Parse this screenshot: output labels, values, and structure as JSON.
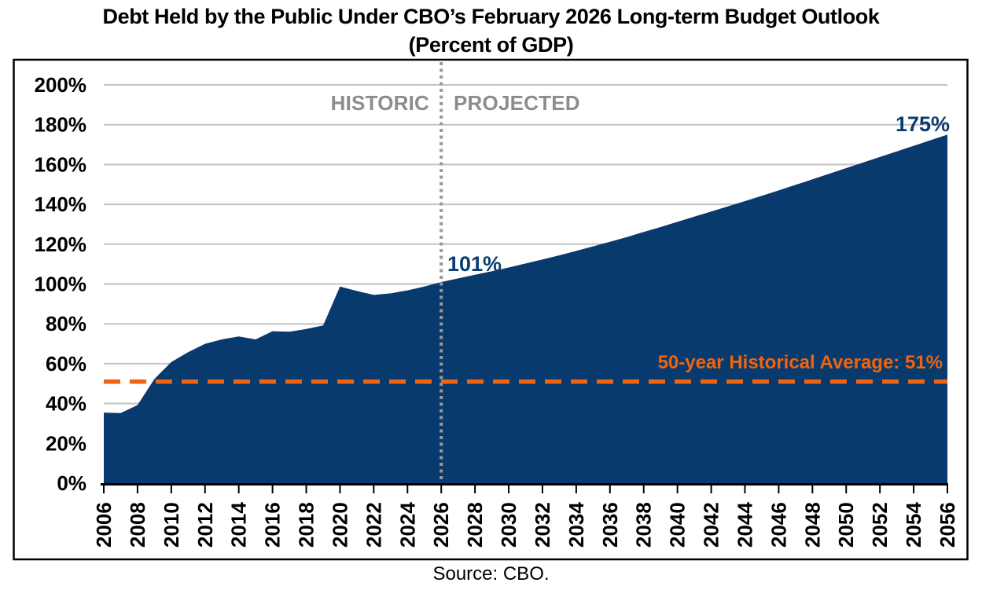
{
  "title": {
    "line1": "Debt Held by the Public Under CBO’s February 2026 Long-term Budget Outlook",
    "line2": "(Percent of GDP)"
  },
  "annotations": {
    "historic": "HISTORIC",
    "projected": "PROJECTED",
    "start_value_label": "101%",
    "end_value_label": "175%",
    "average_label": "50-year Historical Average: 51%"
  },
  "source": "Source: CBO.",
  "colors": {
    "area": "#083a6d",
    "value_label": "#0b3c71",
    "average_line": "#f0640f",
    "zone_label": "#8c8c8c",
    "divider_line": "#999999",
    "gridline": "#c2c2c2",
    "axis": "#000000",
    "frame": "#000000"
  },
  "chart_data": {
    "type": "area",
    "title": "Debt Held by the Public Under CBO’s February 2026 Long-term Budget Outlook (Percent of GDP)",
    "xlabel": "",
    "ylabel": "Percent of GDP",
    "ylim": [
      0,
      200
    ],
    "y_tick_step": 20,
    "y_tick_suffix": "%",
    "x_range": [
      2006,
      2056
    ],
    "x_tick_step": 2,
    "grid": true,
    "historic_through": 2026,
    "divider_year": 2026,
    "average_line": {
      "value": 51,
      "label": "50-year Historical Average: 51%"
    },
    "callouts": [
      {
        "year": 2026,
        "value": 101,
        "label": "101%"
      },
      {
        "year": 2056,
        "value": 175,
        "label": "175%"
      }
    ],
    "x": [
      2006,
      2007,
      2008,
      2009,
      2010,
      2011,
      2012,
      2013,
      2014,
      2015,
      2016,
      2017,
      2018,
      2019,
      2020,
      2021,
      2022,
      2023,
      2024,
      2025,
      2026,
      2027,
      2028,
      2029,
      2030,
      2031,
      2032,
      2033,
      2034,
      2035,
      2036,
      2037,
      2038,
      2039,
      2040,
      2041,
      2042,
      2043,
      2044,
      2045,
      2046,
      2047,
      2048,
      2049,
      2050,
      2051,
      2052,
      2053,
      2054,
      2055,
      2056
    ],
    "values": [
      35.4,
      35.2,
      39.2,
      52.3,
      60.8,
      65.8,
      70.0,
      72.2,
      73.7,
      72.2,
      76.3,
      76.0,
      77.4,
      79.2,
      98.7,
      96.5,
      94.5,
      95.3,
      96.8,
      98.7,
      101.0,
      102.8,
      104.6,
      106.4,
      108.3,
      110.3,
      112.3,
      114.4,
      116.6,
      118.9,
      121.2,
      123.6,
      126.1,
      128.6,
      131.2,
      133.8,
      136.4,
      139.0,
      141.6,
      144.3,
      147.0,
      149.8,
      152.6,
      155.4,
      158.2,
      161.0,
      163.8,
      166.6,
      169.4,
      172.2,
      175.0
    ]
  }
}
